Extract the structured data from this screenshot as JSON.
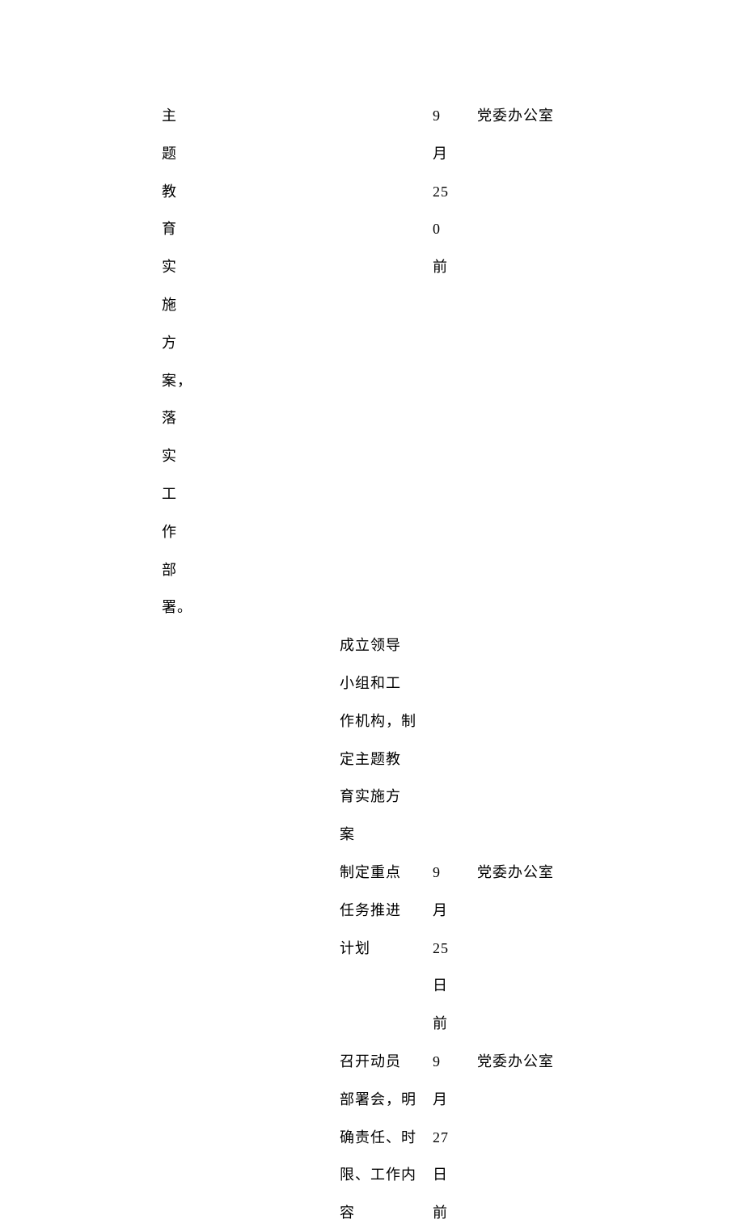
{
  "font": {
    "family": "SimSun",
    "size_pt": 18,
    "color": "#000000",
    "line_height": 2.6
  },
  "background_color": "#ffffff",
  "rows": [
    {
      "col1_lines": [
        "主题教育实施方",
        "案，落实工作部",
        "署。"
      ],
      "col2_lines": [],
      "col3_lines": [
        "9",
        "月",
        "25",
        "0",
        "前"
      ],
      "col4_lines": [
        "党委办公室"
      ]
    },
    {
      "col1_lines": [],
      "col2_lines": [
        "成立领导",
        "小组和工",
        "作机构，制",
        "定主题教",
        "育实施方",
        "案"
      ],
      "col3_lines": [],
      "col4_lines": []
    },
    {
      "col1_lines": [],
      "col2_lines": [
        "制定重点",
        "任务推进",
        "计划"
      ],
      "col3_lines": [
        "9",
        "月",
        "25",
        "日",
        "前"
      ],
      "col4_lines": [
        "党委办公室"
      ]
    },
    {
      "col1_lines": [],
      "col2_lines": [
        "召开动员",
        "部署会，明",
        "确责任、时",
        "限、工作内",
        "容"
      ],
      "col3_lines": [
        "9",
        "月",
        "27",
        "日",
        "前"
      ],
      "col4_lines": [
        "党委办公室"
      ]
    }
  ]
}
